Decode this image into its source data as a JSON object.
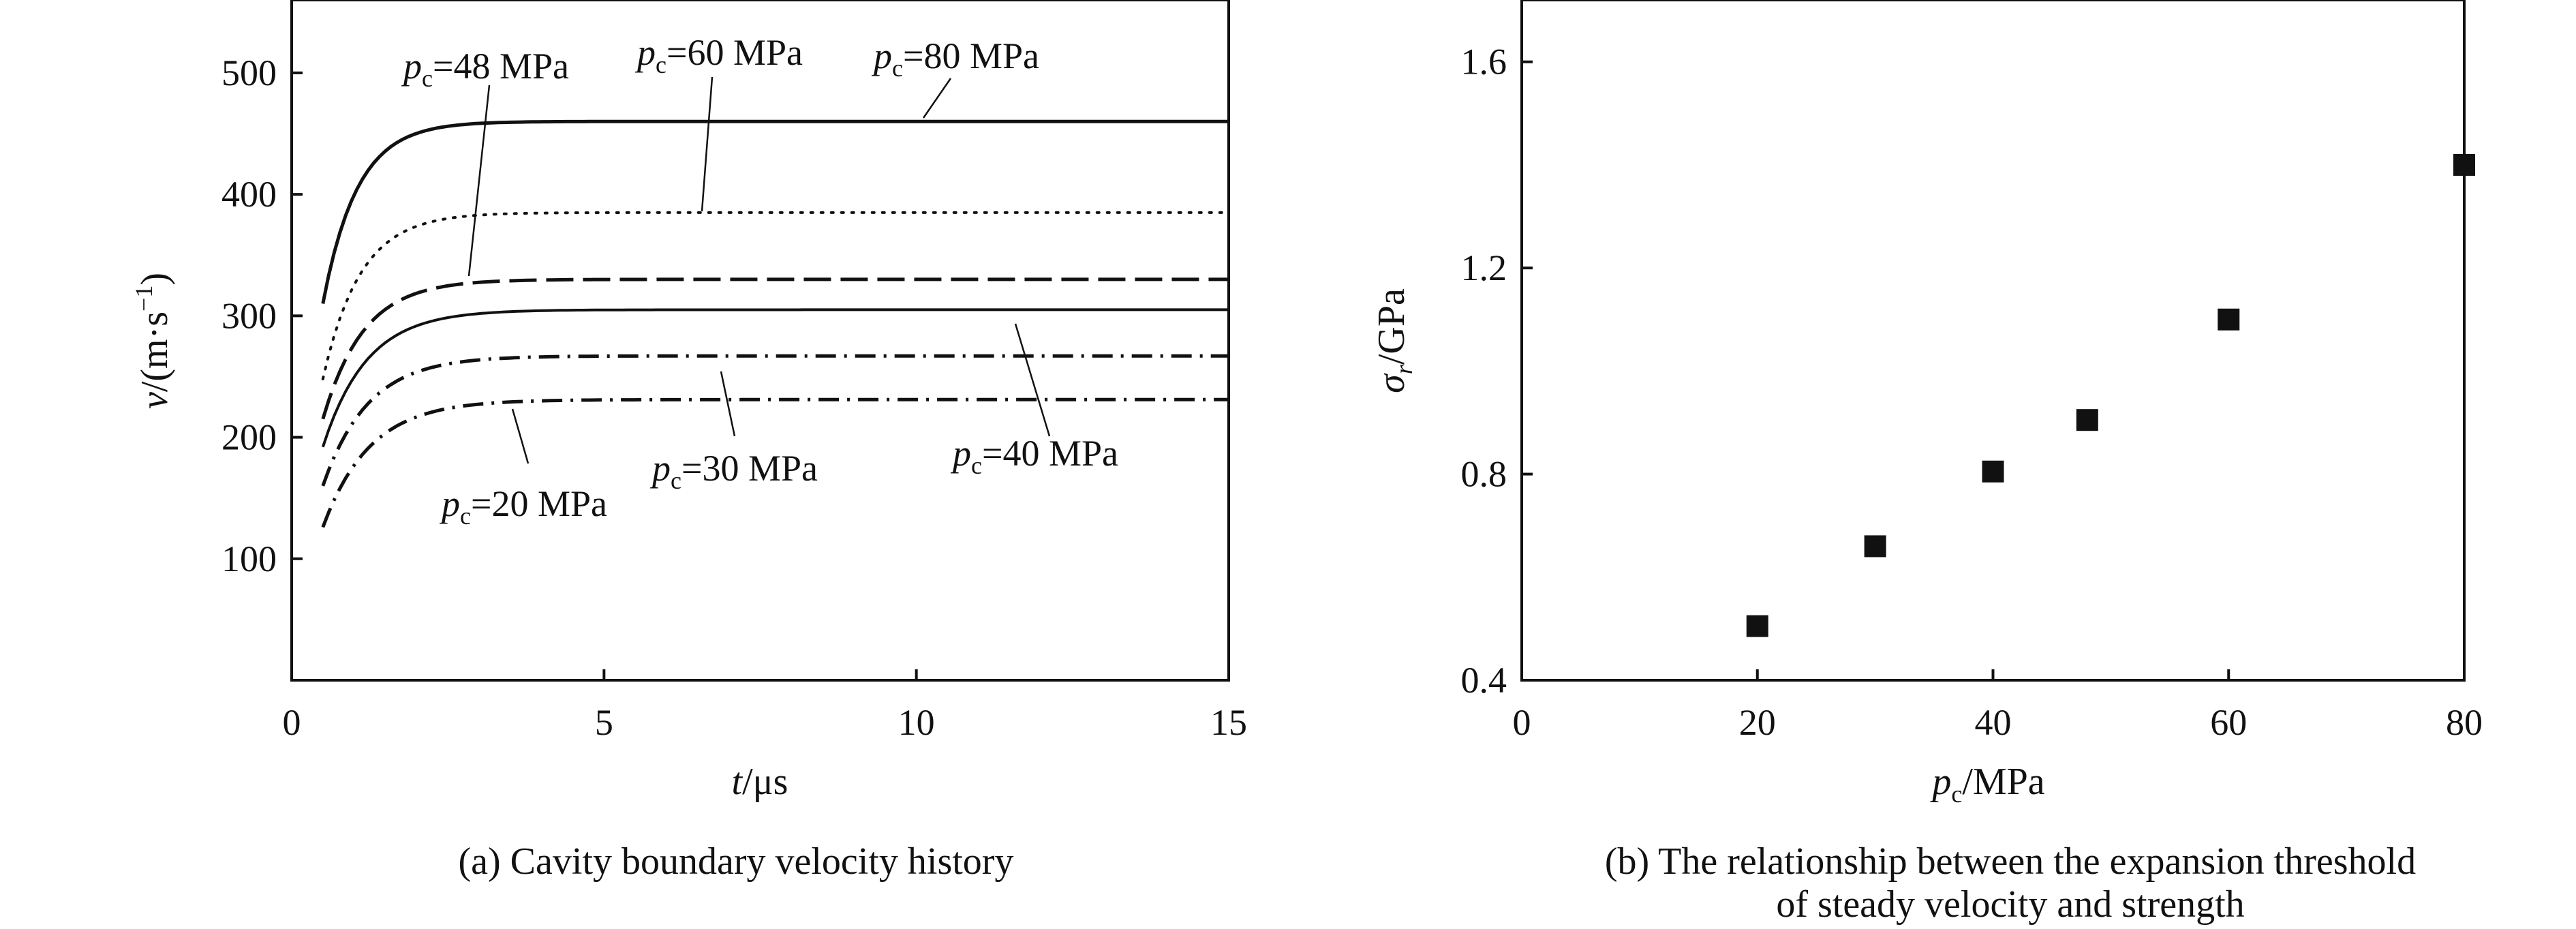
{
  "chart_data": [
    {
      "id": "a",
      "type": "line",
      "caption": "(a) Cavity boundary velocity history",
      "xlabel": {
        "var": "t",
        "unit": "/μs"
      },
      "ylabel": {
        "var": "v",
        "unit": "/(m·s",
        "sup": "−1",
        "close": ")"
      },
      "xlim": [
        0,
        15
      ],
      "ylim": [
        0,
        560
      ],
      "xticks": [
        0,
        5,
        10,
        15
      ],
      "yticks": [
        100,
        200,
        300,
        400,
        500
      ],
      "xtick_labels": [
        "0",
        "5",
        "10",
        "15"
      ],
      "ytick_labels": [
        "100",
        "200",
        "300",
        "400",
        "500"
      ],
      "series": [
        {
          "name": "80 MPa",
          "style": "solid",
          "t_start": 0.5,
          "v0": 310,
          "v_end": 460,
          "tau": 0.55
        },
        {
          "name": "60 MPa",
          "style": "dotted",
          "t_start": 0.5,
          "v0": 248,
          "v_end": 385,
          "tau": 0.6
        },
        {
          "name": "48 MPa",
          "style": "dashed",
          "t_start": 0.5,
          "v0": 215,
          "v_end": 330,
          "tau": 0.65
        },
        {
          "name": "40 MPa",
          "style": "solid-thin",
          "t_start": 0.5,
          "v0": 192,
          "v_end": 305,
          "tau": 0.7
        },
        {
          "name": "30 MPa",
          "style": "dash-dot",
          "t_start": 0.5,
          "v0": 160,
          "v_end": 267,
          "tau": 0.72
        },
        {
          "name": "20 MPa",
          "style": "dash-dot",
          "t_start": 0.5,
          "v0": 126,
          "v_end": 231,
          "tau": 0.75
        }
      ],
      "annotations": [
        {
          "text": "=48 MPa",
          "sym": "p",
          "sub": "c"
        },
        {
          "text": "=60 MPa",
          "sym": "p",
          "sub": "c"
        },
        {
          "text": "=80 MPa",
          "sym": "p",
          "sub": "c"
        },
        {
          "text": "=40 MPa",
          "sym": "p",
          "sub": "c"
        },
        {
          "text": "=30 MPa",
          "sym": "p",
          "sub": "c"
        },
        {
          "text": "=20 MPa",
          "sym": "p",
          "sub": "c"
        }
      ]
    },
    {
      "id": "b",
      "type": "scatter",
      "caption": [
        "(b) The relationship between the expansion threshold",
        "of steady velocity and strength"
      ],
      "xlabel": {
        "var": "p",
        "sub": "c",
        "unit": "/MPa"
      },
      "ylabel": {
        "var": "σ",
        "sub": "r",
        "unit": "/GPa"
      },
      "xlim": [
        0,
        80
      ],
      "ylim": [
        0.4,
        1.72
      ],
      "xticks": [
        0,
        20,
        40,
        60,
        80
      ],
      "yticks": [
        0.4,
        0.8,
        1.2,
        1.6
      ],
      "xtick_labels": [
        "0",
        "20",
        "40",
        "60",
        "80"
      ],
      "ytick_labels": [
        "0.4",
        "0.8",
        "1.2",
        "1.6"
      ],
      "points": [
        {
          "x": 20,
          "y": 0.505
        },
        {
          "x": 30,
          "y": 0.66
        },
        {
          "x": 40,
          "y": 0.805
        },
        {
          "x": 48,
          "y": 0.905
        },
        {
          "x": 60,
          "y": 1.1
        },
        {
          "x": 80,
          "y": 1.4
        }
      ]
    }
  ]
}
